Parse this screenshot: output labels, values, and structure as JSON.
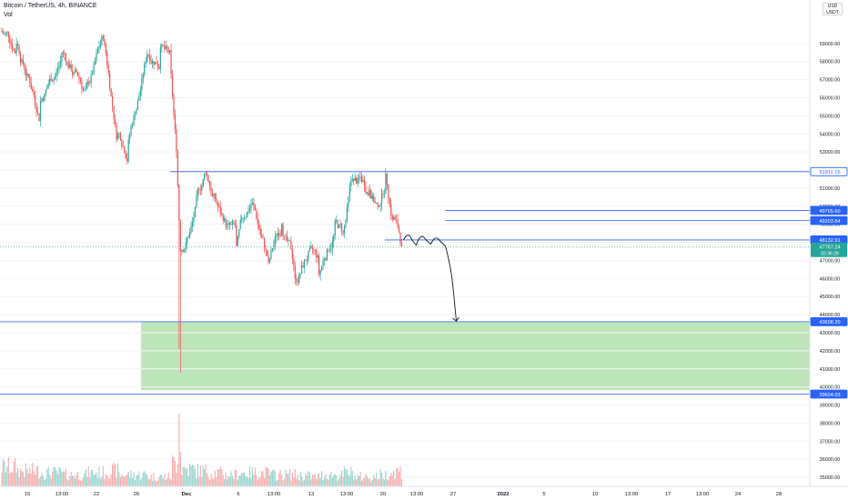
{
  "header": {
    "title": "Bitcoin / TetherUS, 4h, BINANCE",
    "vol_label": "Vol",
    "currency_line1": "USD",
    "currency_line2": "USDT"
  },
  "colors": {
    "up": "#26a69a",
    "down": "#ef5350",
    "level_line": "#2962ff",
    "zone_fill": "#b7e1b3",
    "label_blue": "#2962ff",
    "label_green": "#26a69a"
  },
  "chart_data": {
    "type": "candlestick",
    "symbol": "Bitcoin / TetherUS",
    "interval": "4h",
    "exchange": "BINANCE",
    "y_axis": {
      "min": 34500,
      "max": 60400,
      "ticks": [
        59000,
        58000,
        57000,
        56000,
        55000,
        54000,
        53000,
        52000,
        51000,
        50000,
        49000,
        48000,
        47000,
        46000,
        45000,
        44000,
        43000,
        42000,
        41000,
        40000,
        39000,
        38000,
        37000,
        36000,
        35000
      ],
      "tick_labels": [
        "59000.00",
        "58000.00",
        "57000.00",
        "56000.00",
        "55000.00",
        "54000.00",
        "53000.00",
        "52000.00",
        "51000.00",
        "50000.00",
        "49000.00",
        "48000.00",
        "47000.00",
        "46000.00",
        "45000.00",
        "44000.00",
        "43000.00",
        "42000.00",
        "41000.00",
        "40000.00",
        "39000.00",
        "38000.00",
        "37000.00",
        "36000.00",
        "35000.00"
      ]
    },
    "x_axis": {
      "labels": [
        "15",
        "13:00",
        "22",
        "26",
        "Dec",
        "6",
        "13:00",
        "13",
        "13:00",
        "20",
        "13:00",
        "27",
        "2022",
        "5",
        "10",
        "13:00",
        "17",
        "13:00",
        "24",
        "28"
      ],
      "bold_labels": [
        "Dec",
        "2022"
      ]
    },
    "levels": [
      {
        "price": 51911.15,
        "label": "51911.15",
        "style": "outline",
        "start_frac": 0.21
      },
      {
        "price": 49765.6,
        "label": "49765.60",
        "style": "blue",
        "start_frac": 0.55
      },
      {
        "price": 49203.84,
        "label": "49203.84",
        "style": "blue",
        "start_frac": 0.55
      },
      {
        "price": 48132.91,
        "label": "48132.91",
        "style": "blue",
        "start_frac": 0.475
      },
      {
        "price": 43608.2,
        "label": "43608.20",
        "style": "blue",
        "start_frac": 0
      },
      {
        "price": 39604.03,
        "label": "39604.03",
        "style": "blue",
        "start_frac": 0
      }
    ],
    "current_price": {
      "price": 47767.24,
      "label": "47767.24",
      "countdown": "02:36:28"
    },
    "zone": {
      "top": 43608.2,
      "bottom": 39830,
      "start_frac": 0.172
    },
    "segments": [
      {
        "n": 12,
        "to": 59000,
        "vol": 50
      },
      {
        "n": 18,
        "to": 55800,
        "vol": 40
      },
      {
        "n": 16,
        "to": 58500,
        "vol": 35
      },
      {
        "n": 18,
        "to": 56500,
        "vol": 30
      },
      {
        "n": 14,
        "to": 59000,
        "vol": 35
      },
      {
        "n": 10,
        "to": 54000,
        "vol": 40
      },
      {
        "n": 8,
        "to": 53700,
        "vol": 30
      },
      {
        "n": 14,
        "to": 58400,
        "vol": 30
      },
      {
        "n": 10,
        "to": 58800,
        "vol": 25
      },
      {
        "n": 8,
        "to": 57300,
        "vol": 25
      },
      {
        "n": 4,
        "to": 53000,
        "vol": 60
      },
      {
        "n": 3,
        "to": 47500,
        "vol": 90
      },
      {
        "n": 10,
        "to": 49400,
        "vol": 45
      },
      {
        "n": 10,
        "to": 51700,
        "vol": 40
      },
      {
        "n": 12,
        "to": 49200,
        "vol": 35
      },
      {
        "n": 10,
        "to": 47800,
        "vol": 30
      },
      {
        "n": 12,
        "to": 50200,
        "vol": 35
      },
      {
        "n": 12,
        "to": 46900,
        "vol": 35
      },
      {
        "n": 10,
        "to": 49000,
        "vol": 30
      },
      {
        "n": 10,
        "to": 46000,
        "vol": 30
      },
      {
        "n": 10,
        "to": 47500,
        "vol": 28
      },
      {
        "n": 8,
        "to": 46200,
        "vol": 25
      },
      {
        "n": 12,
        "to": 49200,
        "vol": 30
      },
      {
        "n": 6,
        "to": 48500,
        "vol": 28
      },
      {
        "n": 8,
        "to": 51400,
        "vol": 35
      },
      {
        "n": 12,
        "to": 50900,
        "vol": 25
      },
      {
        "n": 6,
        "to": 50000,
        "vol": 25
      },
      {
        "n": 6,
        "to": 51800,
        "vol": 30
      },
      {
        "n": 6,
        "to": 49400,
        "vol": 35
      },
      {
        "n": 6,
        "to": 47767.24,
        "vol": 40
      }
    ],
    "start_price": 59700,
    "projection_path_prices": [
      48132,
      48350,
      47850,
      48300,
      47900,
      48200,
      47800,
      43650
    ]
  }
}
